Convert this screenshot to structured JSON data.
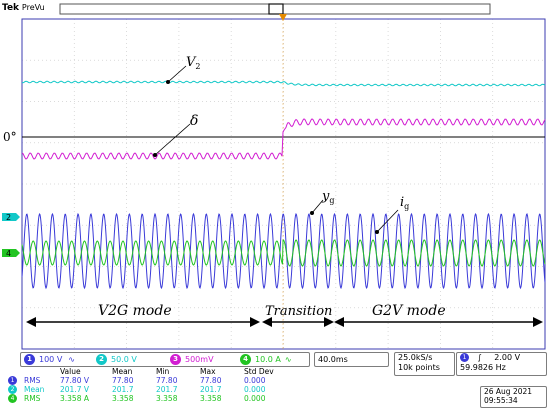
{
  "header": {
    "brand": "Tek",
    "mode": "PreVu"
  },
  "colors": {
    "ch1": "#3a3ad8",
    "ch2": "#12c8c8",
    "ch3": "#d21ed2",
    "ch4": "#22c422",
    "trigger": "#e58a00",
    "grid": "#c8c8c8",
    "border": "#3b3bb0"
  },
  "annotations": {
    "v2": "V",
    "v2_sub": "2",
    "delta": "δ",
    "zero": "0°",
    "yg": "y",
    "yg_sub": "g",
    "ig": "i",
    "ig_sub": "g"
  },
  "modes": {
    "v2g": "V2G mode",
    "transition": "Transition",
    "g2v": "G2V mode"
  },
  "channel_markers": {
    "ch2": "2",
    "ch1": "1",
    "ch4": "4"
  },
  "channels": [
    {
      "num": "1",
      "scale": "100 V",
      "coupling": "∿"
    },
    {
      "num": "2",
      "scale": "50.0 V",
      "coupling": ""
    },
    {
      "num": "3",
      "scale": "500mV",
      "coupling": ""
    },
    {
      "num": "4",
      "scale": "10.0 A",
      "coupling": "∿"
    }
  ],
  "timebase": "40.0ms",
  "sample_rate": "25.0kS/s",
  "record_length": "10k points",
  "trigger": {
    "channel": "1",
    "slope": "∫",
    "level": "2.00 V",
    "freq": "59.9826 Hz"
  },
  "date": "26 Aug 2021",
  "time": "09:55:34",
  "measurements": {
    "headers": [
      "",
      "",
      "Value",
      "Mean",
      "Min",
      "Max",
      "Std Dev"
    ],
    "rows": [
      {
        "ch": "1",
        "type": "RMS",
        "value": "77.80 V",
        "mean": "77.80",
        "min": "77.80",
        "max": "77.80",
        "std": "0.000"
      },
      {
        "ch": "2",
        "type": "Mean",
        "value": "201.7 V",
        "mean": "201.7",
        "min": "201.7",
        "max": "201.7",
        "std": "0.000"
      },
      {
        "ch": "4",
        "type": "RMS",
        "value": "3.358 A",
        "mean": "3.358",
        "min": "3.358",
        "max": "3.358",
        "std": "0.000"
      }
    ]
  }
}
